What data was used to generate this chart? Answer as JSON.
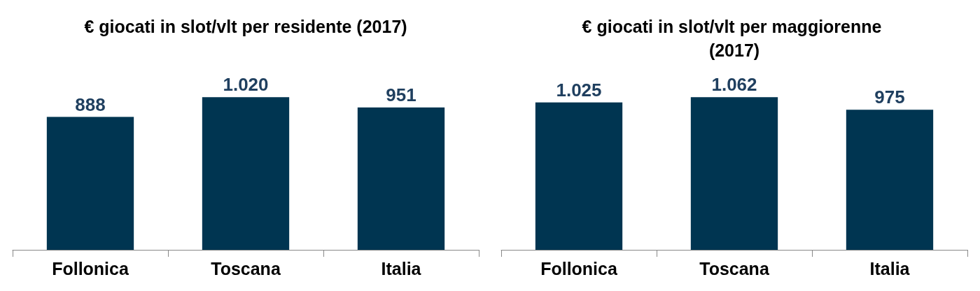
{
  "chart_data": [
    {
      "type": "bar",
      "title": "€ giocati in slot/vlt per residente (2017)",
      "categories": [
        "Follonica",
        "Toscana",
        "Italia"
      ],
      "values": [
        888,
        1020,
        951
      ],
      "value_labels": [
        "888",
        "1.020",
        "951"
      ],
      "color": "#003551"
    },
    {
      "type": "bar",
      "title": "€ giocati in slot/vlt per maggiorenne (2017)",
      "categories": [
        "Follonica",
        "Toscana",
        "Italia"
      ],
      "values": [
        1025,
        1062,
        975
      ],
      "value_labels": [
        "1.025",
        "1.062",
        "975"
      ],
      "color": "#003551"
    }
  ]
}
